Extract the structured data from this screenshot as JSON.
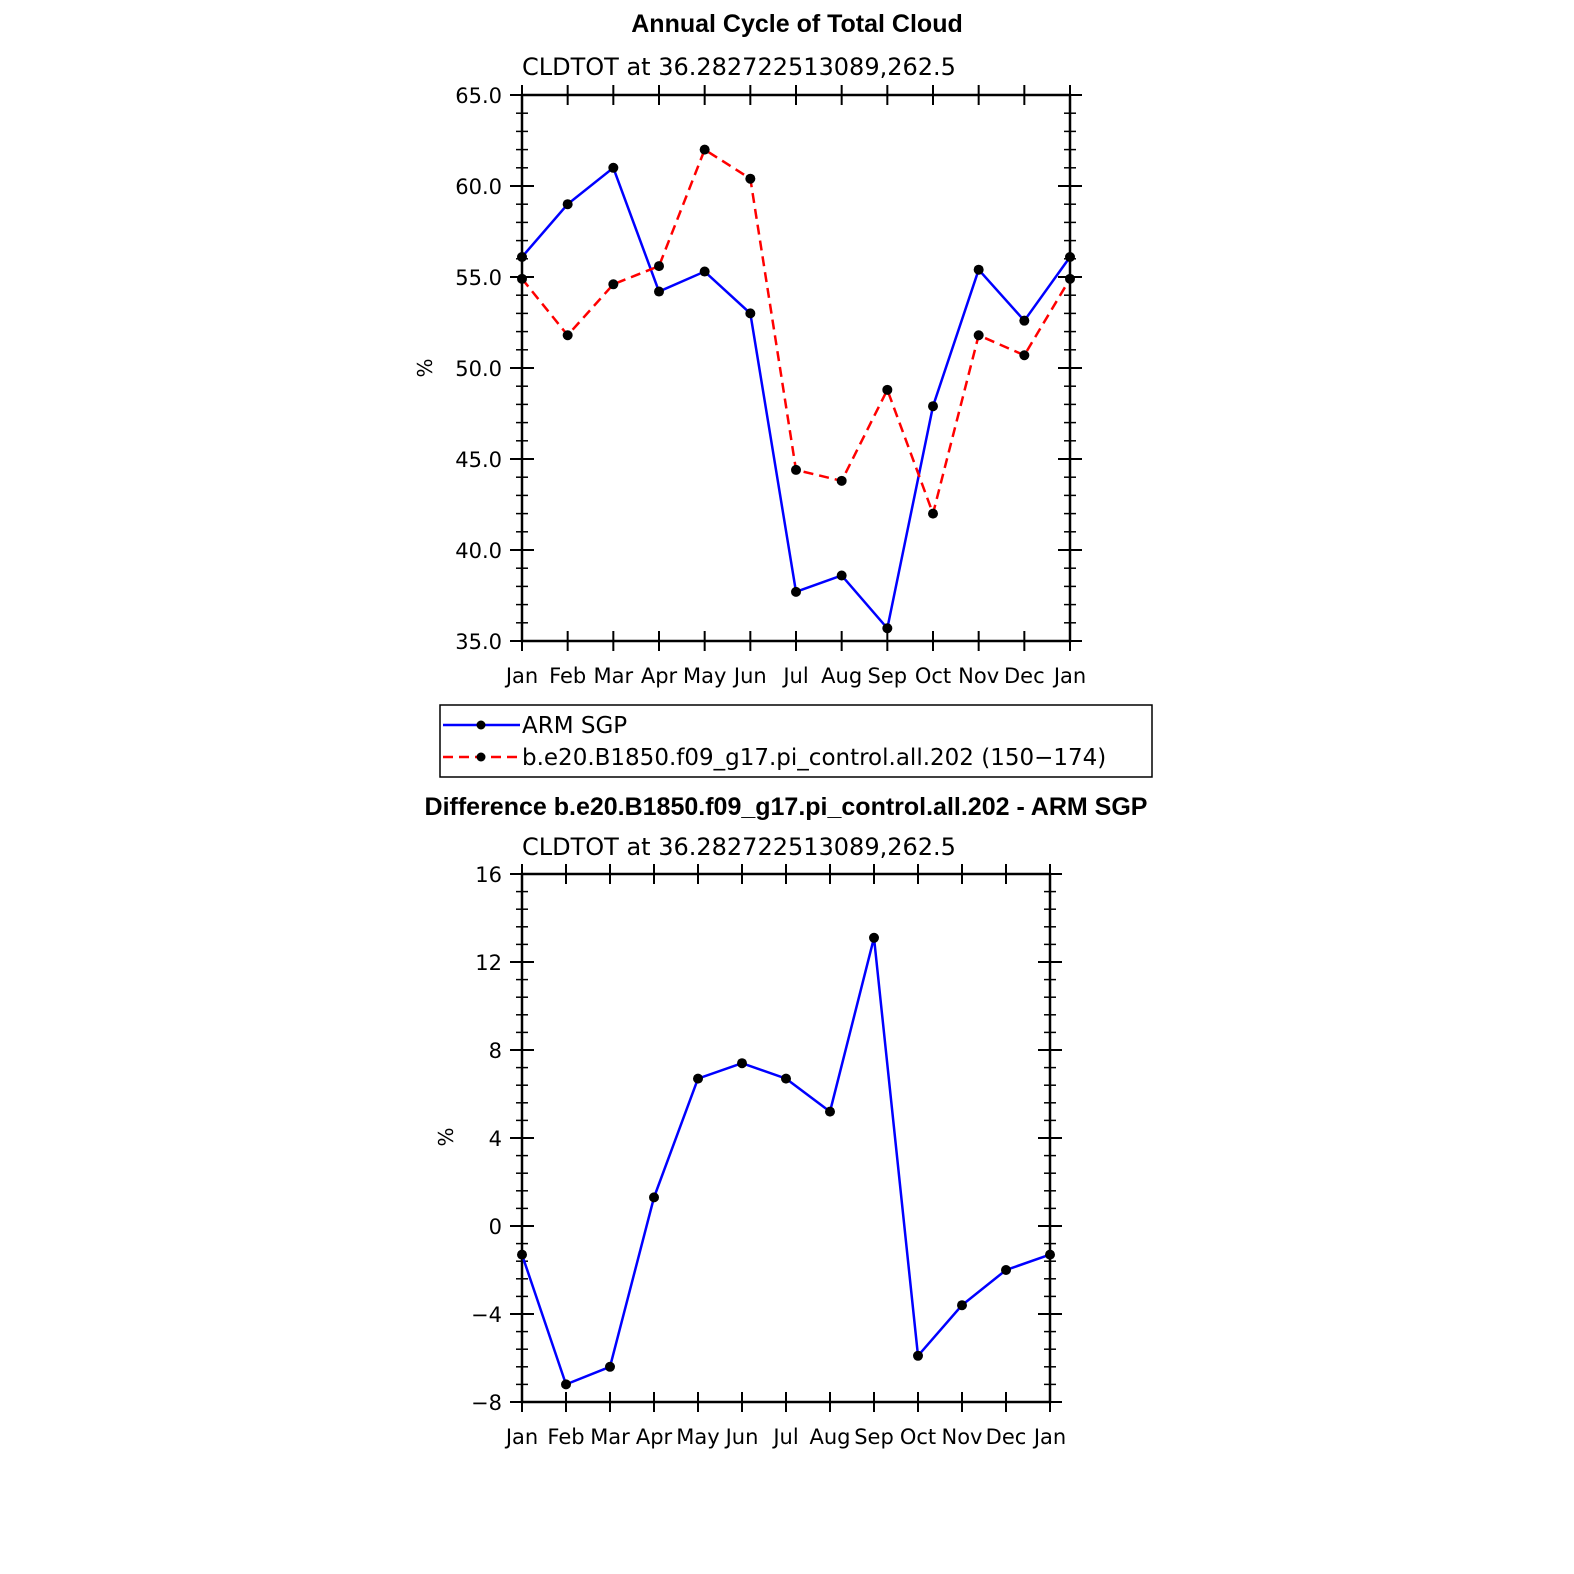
{
  "chart_data": [
    {
      "type": "line",
      "title": "Annual Cycle of Total Cloud",
      "subtitle": "CLDTOT at 36.282722513089,262.5",
      "ylabel": "%",
      "ylim": [
        35.0,
        65.0
      ],
      "ytick_values": [
        35.0,
        40.0,
        45.0,
        50.0,
        55.0,
        60.0,
        65.0
      ],
      "ytick_labels": [
        "35.0",
        "40.0",
        "45.0",
        "50.0",
        "55.0",
        "60.0",
        "65.0"
      ],
      "categories": [
        "Jan",
        "Feb",
        "Mar",
        "Apr",
        "May",
        "Jun",
        "Jul",
        "Aug",
        "Sep",
        "Oct",
        "Nov",
        "Dec",
        "Jan"
      ],
      "series": [
        {
          "name": "ARM SGP",
          "color": "#0000ff",
          "dash": "solid",
          "values": [
            56.1,
            59.0,
            61.0,
            54.2,
            55.3,
            53.0,
            37.7,
            38.6,
            35.7,
            47.9,
            55.4,
            52.6,
            56.1
          ]
        },
        {
          "name": "b.e20.B1850.f09_g17.pi_control.all.202 (150−174)",
          "color": "#ff0000",
          "dash": "dashed",
          "values": [
            54.9,
            51.8,
            54.6,
            55.6,
            62.0,
            60.4,
            44.4,
            43.8,
            48.8,
            42.0,
            51.8,
            50.7,
            54.9
          ]
        }
      ],
      "legend_position": "below"
    },
    {
      "type": "line",
      "title": "Difference b.e20.B1850.f09_g17.pi_control.all.202 - ARM SGP",
      "subtitle": "CLDTOT at 36.282722513089,262.5",
      "ylabel": "%",
      "ylim": [
        -8,
        16
      ],
      "ytick_values": [
        -8,
        -4,
        0,
        4,
        8,
        12,
        16
      ],
      "ytick_labels": [
        "−8",
        "−4",
        "0",
        "4",
        "8",
        "12",
        "16"
      ],
      "categories": [
        "Jan",
        "Feb",
        "Mar",
        "Apr",
        "May",
        "Jun",
        "Jul",
        "Aug",
        "Sep",
        "Oct",
        "Nov",
        "Dec",
        "Jan"
      ],
      "series": [
        {
          "color": "#0000ff",
          "dash": "solid",
          "values": [
            -1.3,
            -7.2,
            -6.4,
            1.3,
            6.7,
            7.4,
            6.7,
            5.2,
            13.1,
            -5.9,
            -3.6,
            -2.0,
            -1.3
          ]
        }
      ]
    }
  ]
}
